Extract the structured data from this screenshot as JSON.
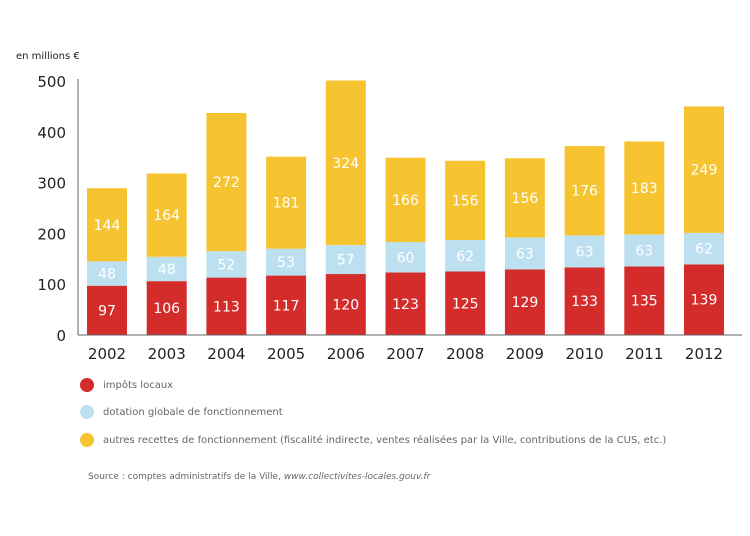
{
  "chart_data": {
    "type": "bar",
    "stacked": true,
    "ylabel": "en millions €",
    "ylim": [
      0,
      500
    ],
    "yticks": [
      0,
      100,
      200,
      300,
      400,
      500
    ],
    "grid": false,
    "categories": [
      "2002",
      "2003",
      "2004",
      "2005",
      "2006",
      "2007",
      "2008",
      "2009",
      "2010",
      "2011",
      "2012"
    ],
    "series": [
      {
        "name": "impôts locaux",
        "color": "#d42b2b",
        "values": [
          97,
          106,
          113,
          117,
          120,
          123,
          125,
          129,
          133,
          135,
          139
        ]
      },
      {
        "name": "dotation globale de fonctionnement",
        "color": "#bde0f1",
        "values": [
          48,
          48,
          52,
          53,
          57,
          60,
          62,
          63,
          63,
          63,
          62
        ]
      },
      {
        "name": "autres recettes de fonctionnement (fiscalité indirecte, ventes réalisées par la Ville, contributions de la CUS, etc.)",
        "color": "#f7c431",
        "values": [
          144,
          164,
          272,
          181,
          324,
          166,
          156,
          156,
          176,
          183,
          249
        ]
      }
    ],
    "legend_position": "bottom-left",
    "source_prefix": "Source : comptes administratifs de la Ville, ",
    "source_link": "www.collectivites-locales.gouv.fr"
  }
}
